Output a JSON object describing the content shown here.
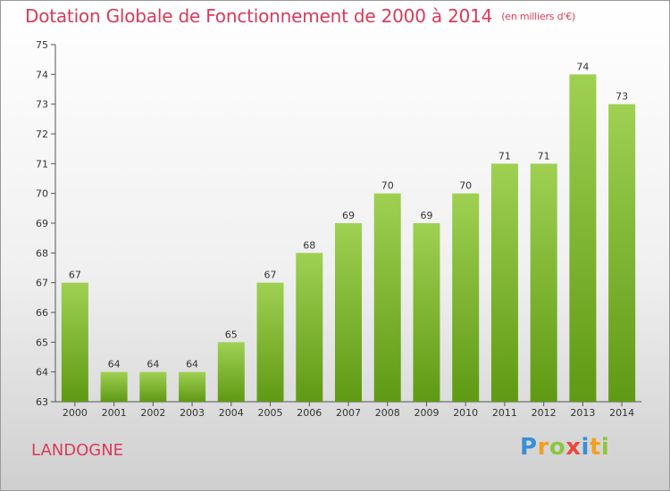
{
  "title": "Dotation Globale de Fonctionnement de 2000 à 2014",
  "subtitle": "(en milliers d'€)",
  "commune": "LANDOGNE",
  "logo": {
    "letters": [
      "P",
      "r",
      "o",
      "x",
      "i",
      "t",
      "i"
    ]
  },
  "colors": {
    "bar_top": "#9fd052",
    "bar_bottom": "#5f9a14",
    "title": "#d93a5a"
  },
  "chart_data": {
    "type": "bar",
    "title": "Dotation Globale de Fonctionnement de 2000 à 2014",
    "subtitle": "(en milliers d'€)",
    "xlabel": "",
    "ylabel": "",
    "categories": [
      "2000",
      "2001",
      "2002",
      "2003",
      "2004",
      "2005",
      "2006",
      "2007",
      "2008",
      "2009",
      "2010",
      "2011",
      "2012",
      "2013",
      "2014"
    ],
    "values": [
      67,
      64,
      64,
      64,
      65,
      67,
      68,
      69,
      70,
      69,
      70,
      71,
      71,
      74,
      73
    ],
    "ylim": [
      63,
      75
    ],
    "yticks": [
      63,
      64,
      65,
      66,
      67,
      68,
      69,
      70,
      71,
      72,
      73,
      74,
      75
    ],
    "grid": false,
    "legend": "none"
  }
}
